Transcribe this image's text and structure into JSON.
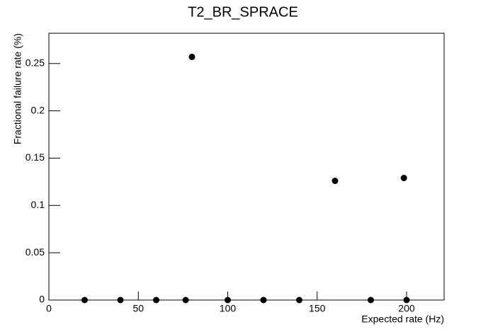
{
  "chart_data": {
    "type": "scatter",
    "title": "T2_BR_SPRACE",
    "x_label": "Expected rate (Hz)",
    "y_label": "Fractional failure rate (%)",
    "x": [
      20,
      40,
      60,
      76.5,
      80,
      100,
      120,
      140,
      160,
      180,
      198.5,
      200
    ],
    "values": [
      0,
      0,
      0,
      0,
      0.257,
      0,
      0,
      0,
      0.126,
      0,
      0.129,
      0
    ],
    "color": "#000000",
    "xlim": [
      0,
      221
    ],
    "xticks": [
      0,
      50,
      100,
      150,
      200
    ],
    "ylim": [
      0,
      0.282
    ],
    "yticks": [
      0,
      0.05,
      0.1,
      0.15,
      0.2,
      0.25
    ],
    "grid": false
  }
}
